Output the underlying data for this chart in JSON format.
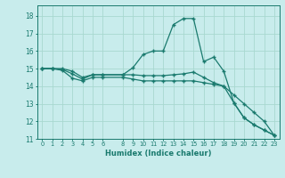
{
  "xlabel": "Humidex (Indice chaleur)",
  "ylabel": "",
  "background_color": "#c8ecec",
  "grid_color": "#b0d8d8",
  "line_color": "#1a7a6e",
  "xlim": [
    -0.5,
    23.5
  ],
  "ylim": [
    11,
    18.6
  ],
  "xtick_values": [
    0,
    1,
    2,
    3,
    4,
    5,
    6,
    8,
    9,
    10,
    11,
    12,
    13,
    14,
    15,
    16,
    17,
    18,
    19,
    20,
    21,
    22,
    23
  ],
  "ytick_values": [
    11,
    12,
    13,
    14,
    15,
    16,
    17,
    18
  ],
  "series": [
    {
      "x": [
        0,
        1,
        2,
        3,
        4,
        5,
        6,
        8,
        9,
        10,
        11,
        12,
        13,
        14,
        15,
        16,
        17,
        18,
        19,
        20,
        21,
        22,
        23
      ],
      "y": [
        15.0,
        15.0,
        15.0,
        14.85,
        14.5,
        14.65,
        14.65,
        14.65,
        15.05,
        15.8,
        16.0,
        16.0,
        17.5,
        17.85,
        17.85,
        15.4,
        15.65,
        14.85,
        13.05,
        12.2,
        11.8,
        11.5,
        11.2
      ]
    },
    {
      "x": [
        0,
        1,
        2,
        3,
        4,
        5,
        6,
        8,
        9,
        10,
        11,
        12,
        13,
        14,
        15,
        16,
        17,
        18,
        19,
        20,
        21,
        22,
        23
      ],
      "y": [
        15.0,
        15.0,
        14.95,
        14.7,
        14.4,
        14.65,
        14.65,
        14.65,
        14.65,
        14.6,
        14.6,
        14.6,
        14.65,
        14.7,
        14.8,
        14.5,
        14.2,
        14.0,
        13.05,
        12.2,
        11.8,
        11.5,
        11.2
      ]
    },
    {
      "x": [
        0,
        1,
        2,
        3,
        4,
        5,
        6,
        8,
        9,
        10,
        11,
        12,
        13,
        14,
        15,
        16,
        17,
        18,
        19,
        20,
        21,
        22,
        23
      ],
      "y": [
        15.0,
        15.0,
        14.9,
        14.45,
        14.3,
        14.5,
        14.5,
        14.5,
        14.4,
        14.3,
        14.3,
        14.3,
        14.3,
        14.3,
        14.3,
        14.2,
        14.1,
        14.0,
        13.5,
        13.0,
        12.5,
        12.0,
        11.2
      ]
    }
  ]
}
